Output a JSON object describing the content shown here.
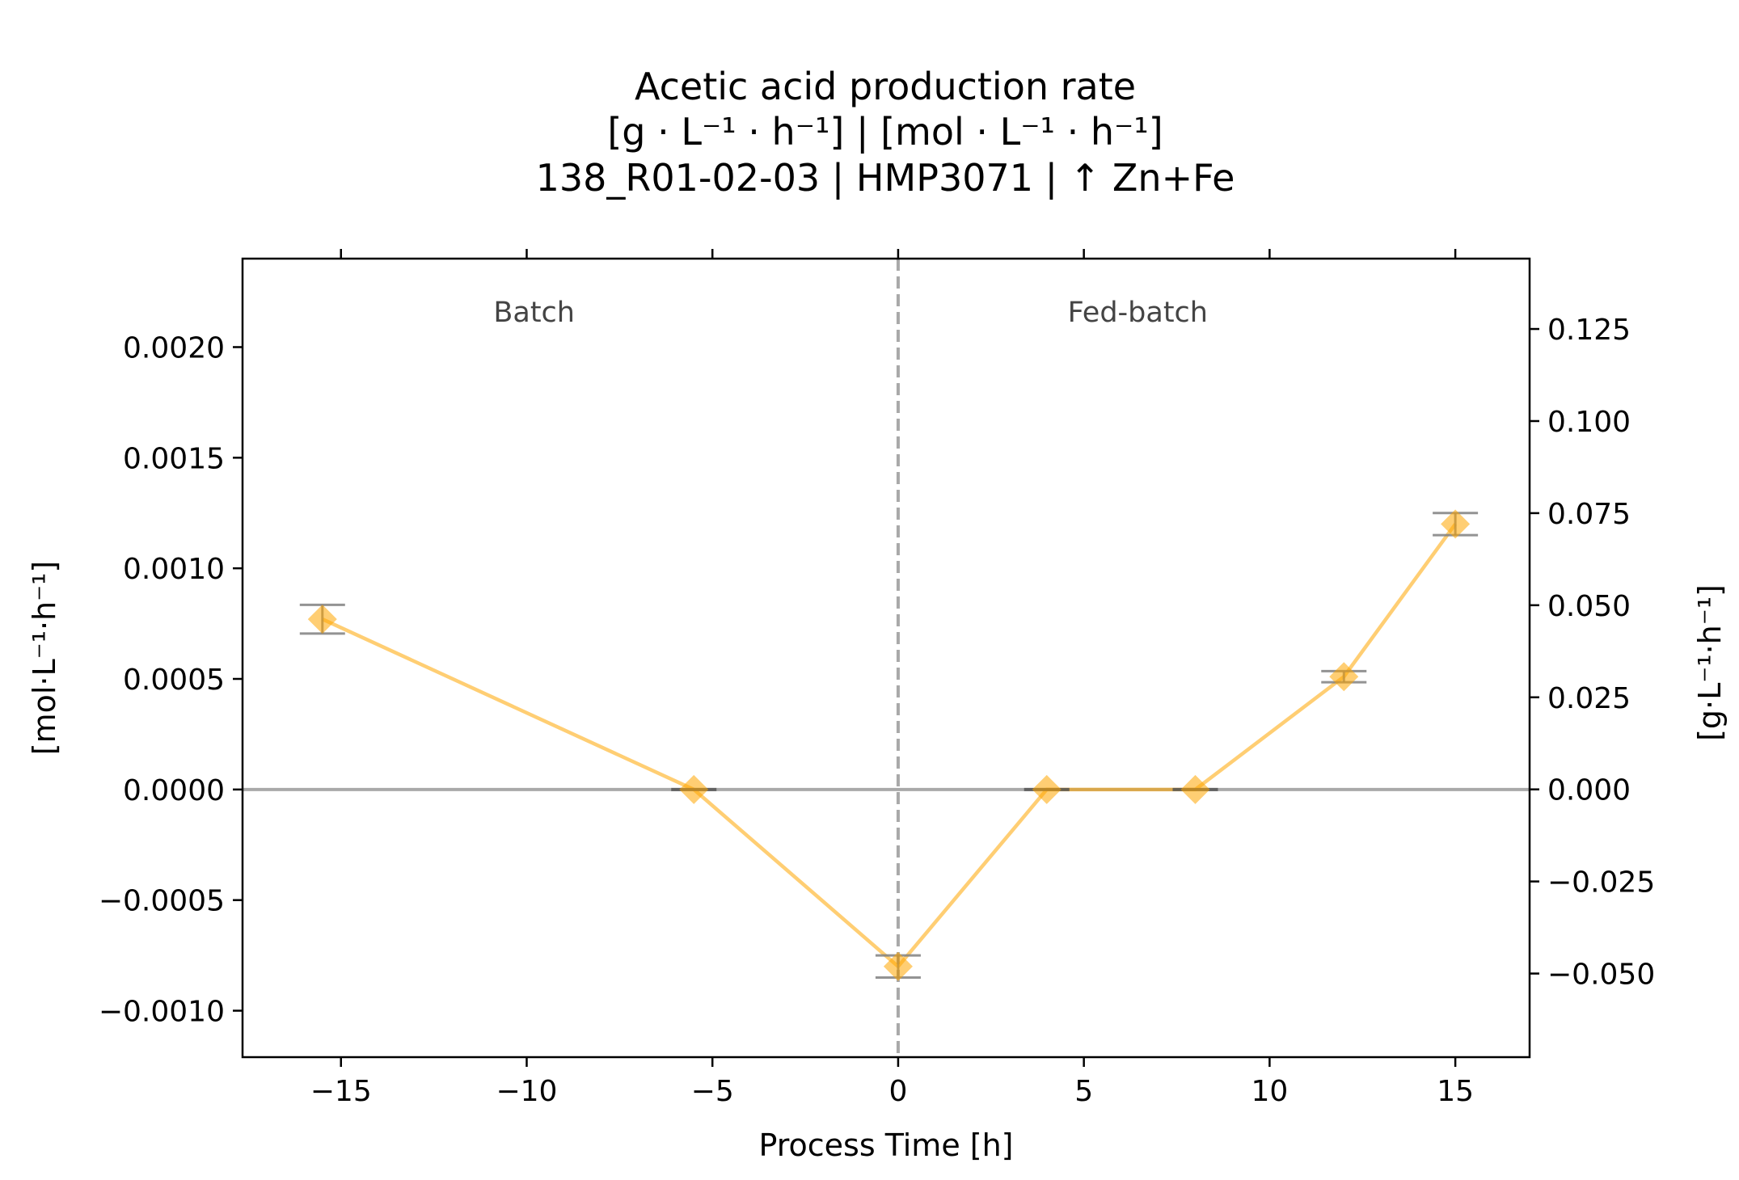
{
  "chart_data": {
    "type": "line",
    "title": [
      "Acetic acid production rate",
      "[g · L⁻¹ · h⁻¹]    |    [mol · L⁻¹ · h⁻¹]",
      "138_R01-02-03  |  HMP3071  |  ↑ Zn+Fe"
    ],
    "xlabel": "Process Time [h]",
    "ylabel_left": "[mol·L⁻¹·h⁻¹]",
    "ylabel_right": "[g·L⁻¹·h⁻¹]",
    "xlim": [
      -17.65,
      17
    ],
    "ylim_left": [
      -0.00121,
      0.0024
    ],
    "ylim_right": [
      -0.0727,
      0.1441
    ],
    "xticks": [
      -15,
      -10,
      -5,
      0,
      5,
      10,
      15
    ],
    "xtick_labels": [
      "−15",
      "−10",
      "−5",
      "0",
      "5",
      "10",
      "15"
    ],
    "yticks_left": [
      -0.001,
      -0.0005,
      0,
      0.0005,
      0.001,
      0.0015,
      0.002
    ],
    "ytick_labels_left": [
      "−0.0010",
      "−0.0005",
      "0.0000",
      "0.0005",
      "0.0010",
      "0.0015",
      "0.0020"
    ],
    "yticks_right": [
      -0.05,
      -0.025,
      0,
      0.025,
      0.05,
      0.075,
      0.1,
      0.125
    ],
    "ytick_labels_right": [
      "−0.050",
      "−0.025",
      "0.000",
      "0.025",
      "0.050",
      "0.075",
      "0.100",
      "0.125"
    ],
    "phase_labels": [
      {
        "text": "Batch",
        "x": -9.8
      },
      {
        "text": "Fed-batch",
        "x": 6.45
      }
    ],
    "phase_boundary_x": 0,
    "series": [
      {
        "x": [
          -15.5,
          -5.5,
          0,
          4,
          8,
          12,
          15
        ],
        "y": [
          0.00077,
          0.0,
          -0.0008,
          0.0,
          0.0,
          0.00051,
          0.0012
        ],
        "yerr": [
          6.5e-05,
          0.0,
          5e-05,
          0.0,
          0.0,
          2.5e-05,
          5e-05
        ]
      }
    ],
    "colors": {
      "series": "#ffa500",
      "zero_line": "#a9a9a9",
      "phase_line": "#a9a9a9",
      "errorbar": "#808080"
    }
  }
}
